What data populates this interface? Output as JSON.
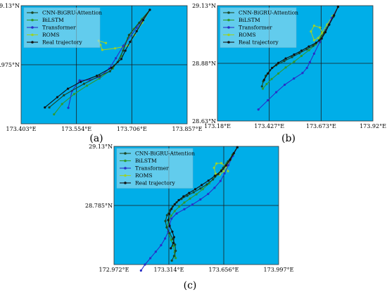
{
  "colors": {
    "plot_bg": "#00aee8",
    "grid": "#1b1b1b",
    "cnn_bigru_attention": "#1a4726",
    "bilstm": "#2f9a2f",
    "transformer": "#2a2fc7",
    "roms": "#9bd12c",
    "real_trajectory": "#111111"
  },
  "chart_data": [
    {
      "type": "line",
      "panel_label": "(a)",
      "x_ticks": [
        "173.403°E",
        "173.554°E",
        "173.706°E",
        "173.857°E"
      ],
      "y_ticks": [
        "29.13°N",
        "28.975°N"
      ],
      "xlim": [
        173.403,
        173.857
      ],
      "ylim": [
        28.82,
        29.13
      ],
      "legend_position": "top-left",
      "series": [
        {
          "name": "CNN-BiGRU-Attention",
          "key": "cnn_bigru_attention",
          "x": [
            173.755,
            173.726,
            173.698,
            173.682,
            173.667,
            173.646,
            173.618,
            173.575,
            173.52,
            173.48
          ],
          "y": [
            29.119,
            29.085,
            29.053,
            29.012,
            28.982,
            28.958,
            28.946,
            28.925,
            28.895,
            28.863
          ]
        },
        {
          "name": "BiLSTM",
          "key": "bilstm",
          "x": [
            173.755,
            173.733,
            173.711,
            173.695,
            173.684,
            173.677,
            173.654,
            173.617,
            173.583,
            173.548,
            173.515,
            173.493
          ],
          "y": [
            29.119,
            29.095,
            29.069,
            29.045,
            29.026,
            28.998,
            28.965,
            28.939,
            28.92,
            28.898,
            28.872,
            28.845
          ]
        },
        {
          "name": "Transformer",
          "key": "transformer",
          "x": [
            173.755,
            173.719,
            173.682,
            173.662,
            173.644,
            173.618,
            173.591,
            173.563,
            173.542,
            173.532
          ],
          "y": [
            29.119,
            29.072,
            29.024,
            28.992,
            28.965,
            28.943,
            28.935,
            28.934,
            28.906,
            28.862
          ]
        },
        {
          "name": "ROMS",
          "key": "roms",
          "x": [
            173.755,
            173.734,
            173.713,
            173.695,
            173.66,
            173.625,
            173.62,
            173.615,
            173.635
          ],
          "y": [
            29.119,
            29.085,
            29.053,
            29.025,
            29.018,
            29.014,
            29.027,
            29.038,
            29.032
          ]
        },
        {
          "name": "Real trajectory",
          "key": "real_trajectory",
          "x": [
            173.755,
            173.737,
            173.719,
            173.701,
            173.688,
            173.677,
            173.65,
            173.61,
            173.566,
            173.531,
            173.502,
            173.468
          ],
          "y": [
            29.119,
            29.092,
            29.063,
            29.035,
            29.012,
            28.99,
            28.967,
            28.946,
            28.93,
            28.912,
            28.89,
            28.863
          ]
        }
      ]
    },
    {
      "type": "line",
      "panel_label": "(b)",
      "x_ticks": [
        "173.18°E",
        "173.427°E",
        "173.673°E",
        "173.92°E"
      ],
      "y_ticks": [
        "29.13°N",
        "28.88°N",
        "28.63°N"
      ],
      "xlim": [
        173.18,
        173.92
      ],
      "ylim": [
        28.63,
        29.13
      ],
      "legend_position": "top-left",
      "series": [
        {
          "name": "CNN-BiGRU-Attention",
          "key": "cnn_bigru_attention",
          "x": [
            173.754,
            173.733,
            173.71,
            173.688,
            173.664,
            173.636,
            173.605,
            173.57,
            173.535,
            173.498,
            173.46,
            173.43,
            173.41,
            173.398,
            173.392
          ],
          "y": [
            29.125,
            29.083,
            29.046,
            29.012,
            28.979,
            28.956,
            28.941,
            28.924,
            28.907,
            28.89,
            28.872,
            28.85,
            28.826,
            28.802,
            28.78
          ]
        },
        {
          "name": "BiLSTM",
          "key": "bilstm",
          "x": [
            173.754,
            173.728,
            173.7,
            173.673,
            173.648,
            173.616,
            173.58,
            173.545,
            173.505,
            173.47,
            173.438,
            173.414,
            173.396
          ],
          "y": [
            29.125,
            29.079,
            29.034,
            28.995,
            28.962,
            28.937,
            28.912,
            28.887,
            28.862,
            28.836,
            28.812,
            28.79,
            28.77
          ]
        },
        {
          "name": "Transformer",
          "key": "transformer",
          "x": [
            173.754,
            173.724,
            173.695,
            173.667,
            173.64,
            173.62,
            173.606,
            173.585,
            173.544,
            173.5,
            173.46,
            173.42,
            173.375
          ],
          "y": [
            29.125,
            29.076,
            29.024,
            28.972,
            28.922,
            28.885,
            28.86,
            28.838,
            28.814,
            28.787,
            28.755,
            28.72,
            28.68
          ]
        },
        {
          "name": "ROMS",
          "key": "roms",
          "x": [
            173.754,
            173.728,
            173.702,
            173.678,
            173.66,
            173.64,
            173.625,
            173.64,
            173.668,
            173.68
          ],
          "y": [
            29.125,
            29.085,
            29.048,
            29.012,
            28.99,
            28.98,
            29.018,
            29.043,
            29.035,
            29.01
          ]
        },
        {
          "name": "Real trajectory",
          "key": "real_trajectory",
          "x": [
            173.754,
            173.735,
            173.712,
            173.694,
            173.676,
            173.65,
            173.615,
            173.58,
            173.545,
            173.505,
            173.47,
            173.44,
            173.42,
            173.402
          ],
          "y": [
            29.125,
            29.088,
            29.048,
            29.015,
            28.987,
            28.969,
            28.953,
            28.935,
            28.918,
            28.901,
            28.882,
            28.86,
            28.836,
            28.808
          ]
        }
      ]
    },
    {
      "type": "line",
      "panel_label": "(c)",
      "x_ticks": [
        "172.972°E",
        "173.314°E",
        "173.656°E",
        "173.997°E"
      ],
      "y_ticks": [
        "29.13°N",
        "28.785°N"
      ],
      "xlim": [
        172.972,
        173.997
      ],
      "ylim": [
        28.44,
        29.13
      ],
      "legend_position": "top-left",
      "series": [
        {
          "name": "CNN-BiGRU-Attention",
          "key": "cnn_bigru_attention",
          "x": [
            173.74,
            173.712,
            173.682,
            173.652,
            173.622,
            173.588,
            173.55,
            173.51,
            173.468,
            173.428,
            173.392,
            173.362,
            173.338,
            173.318,
            173.302,
            173.292,
            173.3,
            173.318,
            173.338,
            173.352,
            173.356,
            173.346,
            173.332
          ],
          "y": [
            29.125,
            29.083,
            29.042,
            29.005,
            28.968,
            28.937,
            28.908,
            28.884,
            28.862,
            28.842,
            28.823,
            28.803,
            28.781,
            28.756,
            28.728,
            28.694,
            28.657,
            28.623,
            28.59,
            28.556,
            28.52,
            28.49,
            28.463
          ]
        },
        {
          "name": "BiLSTM",
          "key": "bilstm",
          "x": [
            173.74,
            173.708,
            173.673,
            173.64,
            173.602,
            173.565,
            173.525,
            173.485,
            173.445,
            173.41,
            173.378,
            173.35,
            173.328,
            173.312,
            173.302,
            173.313,
            173.328,
            173.342,
            173.35,
            173.356
          ],
          "y": [
            29.125,
            29.078,
            29.032,
            28.992,
            28.952,
            28.914,
            28.88,
            28.85,
            28.825,
            28.802,
            28.778,
            28.752,
            28.725,
            28.695,
            28.66,
            28.622,
            28.584,
            28.548,
            28.512,
            28.478
          ]
        },
        {
          "name": "Transformer",
          "key": "transformer",
          "x": [
            173.74,
            173.712,
            173.684,
            173.66,
            173.635,
            173.598,
            173.558,
            173.51,
            173.46,
            173.41,
            173.362,
            173.33,
            173.318,
            173.31,
            173.29,
            173.265,
            173.232,
            173.198,
            173.165,
            173.14
          ],
          "y": [
            29.125,
            29.074,
            29.02,
            28.972,
            28.928,
            28.888,
            28.852,
            28.82,
            28.79,
            28.763,
            28.738,
            28.708,
            28.672,
            28.632,
            28.592,
            28.553,
            28.515,
            28.477,
            28.44,
            28.405
          ]
        },
        {
          "name": "ROMS",
          "key": "roms",
          "x": [
            173.74,
            173.718,
            173.698,
            173.676,
            173.655,
            173.63,
            173.605,
            173.595,
            173.61,
            173.64,
            173.668,
            173.682
          ],
          "y": [
            29.125,
            29.088,
            29.052,
            29.016,
            28.985,
            28.965,
            28.97,
            29.005,
            29.03,
            29.032,
            29.012,
            28.985
          ]
        },
        {
          "name": "Real trajectory",
          "key": "real_trajectory",
          "x": [
            173.74,
            173.718,
            173.695,
            173.67,
            173.64,
            173.6,
            173.56,
            173.518,
            173.478,
            173.44,
            173.405,
            173.375,
            173.35,
            173.33,
            173.316,
            173.31,
            173.318,
            173.335,
            173.346,
            173.342,
            173.326
          ],
          "y": [
            29.125,
            29.09,
            29.052,
            29.018,
            28.986,
            28.958,
            28.93,
            28.904,
            28.88,
            28.858,
            28.838,
            28.816,
            28.792,
            28.765,
            28.735,
            28.7,
            28.665,
            28.632,
            28.6,
            28.566,
            28.535
          ]
        }
      ]
    }
  ]
}
